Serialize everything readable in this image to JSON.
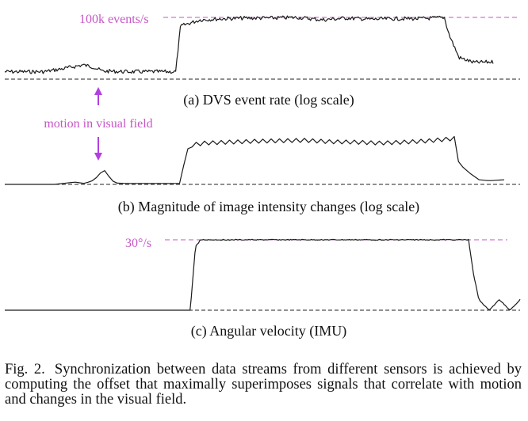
{
  "chart_data": [
    {
      "type": "line",
      "title": "(a) DVS event rate (log scale)",
      "annotation": "100k events/s",
      "y_scale": "log",
      "x": [
        0,
        3,
        8,
        12,
        16,
        18,
        20,
        25,
        30,
        33,
        35,
        36,
        40,
        45,
        50,
        55,
        60,
        65,
        70,
        75,
        80,
        85,
        88,
        90,
        91,
        93,
        96,
        100
      ],
      "y": [
        0.12,
        0.12,
        0.12,
        0.17,
        0.23,
        0.2,
        0.13,
        0.12,
        0.12,
        0.12,
        0.12,
        0.86,
        0.96,
        0.98,
        0.99,
        0.99,
        1.0,
        0.96,
        0.99,
        0.97,
        0.98,
        0.98,
        0.99,
        1.0,
        0.72,
        0.35,
        0.27,
        0.28
      ]
    },
    {
      "type": "line",
      "title": "(b) Magnitude of image intensity changes (log scale)",
      "y_scale": "log",
      "x": [
        0,
        10,
        14,
        16,
        18,
        19,
        20,
        21,
        22,
        24,
        30,
        35,
        36,
        37,
        40,
        45,
        50,
        55,
        60,
        65,
        70,
        75,
        80,
        85,
        88,
        90,
        91,
        93,
        95,
        97,
        100
      ],
      "y": [
        0.0,
        0.0,
        0.05,
        0.02,
        0.1,
        0.24,
        0.3,
        0.15,
        0.03,
        0.02,
        0.02,
        0.02,
        0.5,
        0.85,
        0.9,
        0.92,
        0.94,
        0.95,
        0.96,
        0.93,
        0.92,
        0.9,
        0.92,
        0.95,
        0.98,
        1.0,
        0.45,
        0.25,
        0.1,
        0.08,
        0.1
      ]
    },
    {
      "type": "line",
      "title": "(c) Angular velocity (IMU)",
      "annotation": "30°/s",
      "x": [
        0,
        10,
        20,
        30,
        36,
        37,
        38,
        45,
        55,
        65,
        75,
        85,
        89,
        90,
        91,
        92,
        94,
        96,
        98,
        100
      ],
      "y": [
        0.0,
        0.0,
        0.0,
        0.0,
        0.0,
        0.9,
        1.0,
        1.0,
        1.0,
        1.0,
        1.0,
        1.0,
        1.0,
        1.0,
        0.5,
        0.15,
        0.0,
        0.15,
        0.0,
        0.15
      ]
    }
  ],
  "motion_label": "motion in visual field",
  "caption": {
    "label": "Fig. 2.",
    "text": "Synchronization between data streams from different sensors is achieved by computing the offset that maximally superimposes signals that correlate with motion and changes in the visual field."
  },
  "colors": {
    "signal": "#1a1a1a",
    "reference": "#c656c6",
    "arrow": "#b33fe0",
    "baseline": "#222222"
  }
}
